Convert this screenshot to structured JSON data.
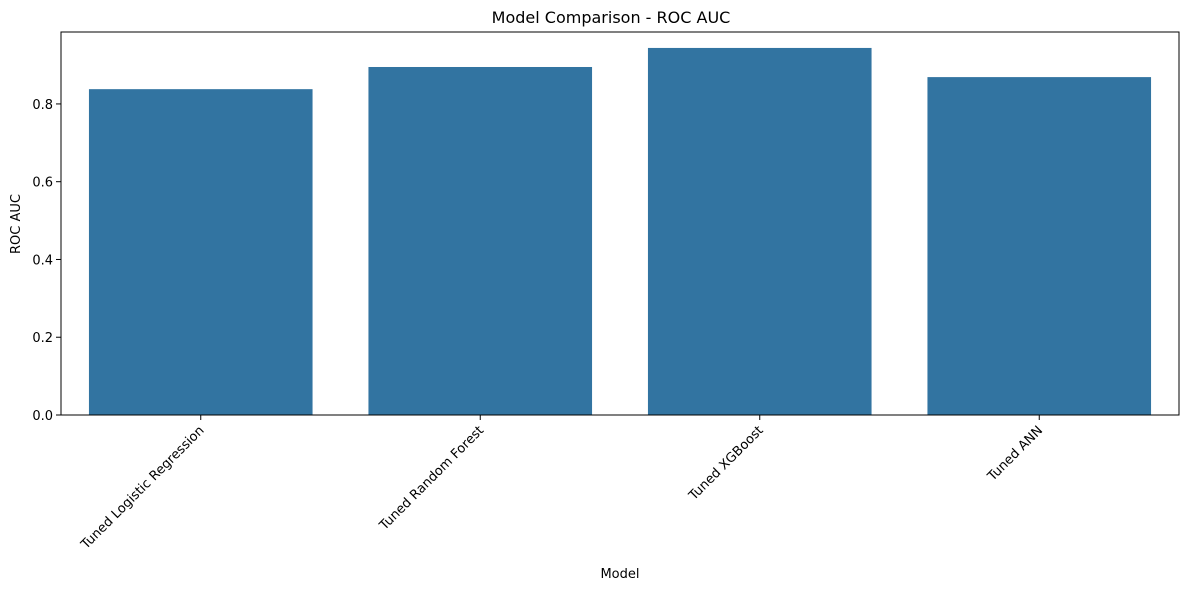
{
  "chart_data": {
    "type": "bar",
    "title": "Model Comparison - ROC AUC",
    "xlabel": "Model",
    "ylabel": "ROC AUC",
    "categories": [
      "Tuned Logistic Regression",
      "Tuned Random Forest",
      "Tuned XGBoost",
      "Tuned ANN"
    ],
    "values": [
      0.838,
      0.895,
      0.944,
      0.869
    ],
    "ylim": [
      0,
      0.985
    ],
    "yticks": [
      0.0,
      0.2,
      0.4,
      0.6,
      0.8
    ],
    "ytick_labels": [
      "0.0",
      "0.2",
      "0.4",
      "0.6",
      "0.8"
    ],
    "bar_color": "#3274a1",
    "grid": false,
    "legend": false
  }
}
